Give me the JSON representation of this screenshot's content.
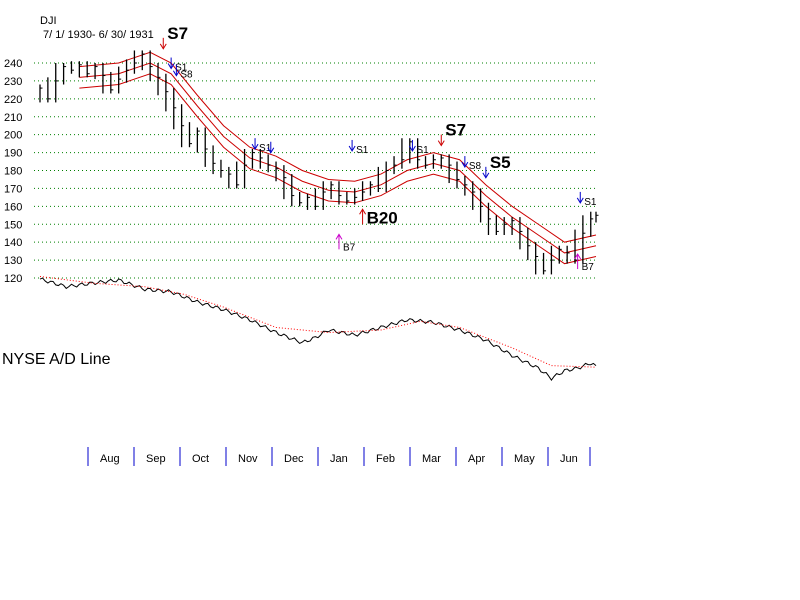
{
  "chart_data": {
    "type": "line",
    "title": "DJI",
    "subtitle": "7/ 1/ 1930- 6/ 30/ 1931",
    "ad_label": "NYSE A/D Line",
    "y_ticks": [
      "240",
      "230",
      "220",
      "210",
      "200",
      "190",
      "180",
      "170",
      "160",
      "150",
      "140",
      "130",
      "120"
    ],
    "ylim": [
      120,
      250
    ],
    "months": [
      "Aug",
      "Sep",
      "Oct",
      "Nov",
      "Dec",
      "Jan",
      "Feb",
      "Mar",
      "Apr",
      "May",
      "Jun"
    ],
    "grid": "dotted horizontal",
    "colors": {
      "price": "#000000",
      "band": "#cc0000",
      "grid": "#008000",
      "ad_line": "#000000",
      "ad_ma": "#ff0000",
      "sell": "#0000cc",
      "sell_major": "#cc0000",
      "buy": "#cc00cc",
      "buy_major": "#cc0000",
      "month_tick": "#0000cc"
    },
    "price": {
      "series_name": "DJI",
      "points": [
        [
          0,
          226
        ],
        [
          3,
          220
        ],
        [
          6,
          230
        ],
        [
          9,
          238
        ],
        [
          12,
          236
        ],
        [
          15,
          239
        ],
        [
          18,
          234
        ],
        [
          21,
          238
        ],
        [
          24,
          233
        ],
        [
          27,
          225
        ],
        [
          30,
          231
        ],
        [
          33,
          236
        ],
        [
          36,
          240
        ],
        [
          39,
          245
        ],
        [
          42,
          238
        ],
        [
          45,
          232
        ],
        [
          48,
          224
        ],
        [
          51,
          215
        ],
        [
          54,
          205
        ],
        [
          57,
          195
        ],
        [
          60,
          202
        ],
        [
          63,
          192
        ],
        [
          66,
          184
        ],
        [
          69,
          180
        ],
        [
          72,
          178
        ],
        [
          75,
          172
        ],
        [
          78,
          183
        ],
        [
          81,
          190
        ],
        [
          84,
          187
        ],
        [
          87,
          183
        ],
        [
          90,
          181
        ],
        [
          93,
          176
        ],
        [
          96,
          166
        ],
        [
          99,
          162
        ],
        [
          102,
          165
        ],
        [
          105,
          160
        ],
        [
          108,
          168
        ],
        [
          111,
          172
        ],
        [
          114,
          166
        ],
        [
          117,
          163
        ],
        [
          120,
          165
        ],
        [
          123,
          168
        ],
        [
          126,
          172
        ],
        [
          129,
          170
        ],
        [
          132,
          180
        ],
        [
          135,
          183
        ],
        [
          138,
          186
        ],
        [
          141,
          196
        ],
        [
          144,
          186
        ],
        [
          147,
          183
        ],
        [
          150,
          186
        ],
        [
          153,
          187
        ],
        [
          156,
          183
        ],
        [
          159,
          175
        ],
        [
          162,
          172
        ],
        [
          165,
          168
        ],
        [
          168,
          160
        ],
        [
          171,
          153
        ],
        [
          174,
          146
        ],
        [
          177,
          150
        ],
        [
          180,
          152
        ],
        [
          183,
          146
        ],
        [
          186,
          138
        ],
        [
          189,
          132
        ],
        [
          192,
          124
        ],
        [
          195,
          130
        ],
        [
          198,
          136
        ],
        [
          201,
          134
        ],
        [
          204,
          130
        ],
        [
          207,
          145
        ],
        [
          210,
          153
        ],
        [
          212,
          155
        ]
      ]
    },
    "bands": {
      "upper": [
        [
          15,
          238
        ],
        [
          30,
          240
        ],
        [
          42,
          246
        ],
        [
          50,
          240
        ],
        [
          60,
          222
        ],
        [
          70,
          205
        ],
        [
          80,
          193
        ],
        [
          90,
          188
        ],
        [
          100,
          180
        ],
        [
          110,
          175
        ],
        [
          120,
          174
        ],
        [
          130,
          178
        ],
        [
          140,
          186
        ],
        [
          150,
          190
        ],
        [
          160,
          186
        ],
        [
          170,
          172
        ],
        [
          180,
          160
        ],
        [
          190,
          150
        ],
        [
          200,
          140
        ],
        [
          212,
          144
        ]
      ],
      "middle": [
        [
          15,
          232
        ],
        [
          30,
          234
        ],
        [
          42,
          240
        ],
        [
          50,
          234
        ],
        [
          60,
          216
        ],
        [
          70,
          199
        ],
        [
          80,
          187
        ],
        [
          90,
          182
        ],
        [
          100,
          174
        ],
        [
          110,
          169
        ],
        [
          120,
          168
        ],
        [
          130,
          172
        ],
        [
          140,
          180
        ],
        [
          150,
          184
        ],
        [
          160,
          180
        ],
        [
          170,
          166
        ],
        [
          180,
          154
        ],
        [
          190,
          144
        ],
        [
          200,
          134
        ],
        [
          212,
          138
        ]
      ],
      "lower": [
        [
          15,
          226
        ],
        [
          30,
          228
        ],
        [
          42,
          234
        ],
        [
          50,
          228
        ],
        [
          60,
          210
        ],
        [
          70,
          193
        ],
        [
          80,
          181
        ],
        [
          90,
          176
        ],
        [
          100,
          168
        ],
        [
          110,
          163
        ],
        [
          120,
          162
        ],
        [
          130,
          166
        ],
        [
          140,
          174
        ],
        [
          150,
          178
        ],
        [
          160,
          174
        ],
        [
          170,
          160
        ],
        [
          180,
          148
        ],
        [
          190,
          138
        ],
        [
          200,
          128
        ],
        [
          212,
          132
        ]
      ]
    },
    "ad_line": [
      [
        0,
        0.0
      ],
      [
        10,
        -1.5
      ],
      [
        20,
        -0.8
      ],
      [
        30,
        -0.2
      ],
      [
        40,
        -2.0
      ],
      [
        50,
        -2.5
      ],
      [
        55,
        -3.5
      ],
      [
        60,
        -4.5
      ],
      [
        70,
        -6.0
      ],
      [
        80,
        -8.0
      ],
      [
        90,
        -10.5
      ],
      [
        100,
        -12.5
      ],
      [
        105,
        -11.5
      ],
      [
        110,
        -10.0
      ],
      [
        120,
        -11.0
      ],
      [
        130,
        -9.5
      ],
      [
        140,
        -8.0
      ],
      [
        150,
        -8.5
      ],
      [
        160,
        -10.0
      ],
      [
        170,
        -12.0
      ],
      [
        180,
        -15.0
      ],
      [
        190,
        -17.5
      ],
      [
        195,
        -19.5
      ],
      [
        200,
        -18.0
      ],
      [
        205,
        -17.5
      ],
      [
        210,
        -16.5
      ],
      [
        212,
        -17.0
      ]
    ],
    "ad_ma": [
      [
        0,
        0.5
      ],
      [
        20,
        -0.8
      ],
      [
        40,
        -1.5
      ],
      [
        55,
        -3.0
      ],
      [
        70,
        -5.5
      ],
      [
        90,
        -9.5
      ],
      [
        110,
        -10.5
      ],
      [
        130,
        -10.0
      ],
      [
        145,
        -8.3
      ],
      [
        160,
        -9.5
      ],
      [
        180,
        -13.5
      ],
      [
        195,
        -17.0
      ],
      [
        212,
        -17.3
      ]
    ],
    "ad_range": [
      -21,
      1
    ],
    "signals": [
      {
        "label": "S7",
        "x": 47,
        "y": 244,
        "kind": "sell_major",
        "size": "big"
      },
      {
        "label": "S1",
        "x": 50,
        "y": 233,
        "kind": "sell",
        "size": "small"
      },
      {
        "label": "S8",
        "x": 52,
        "y": 229,
        "kind": "sell",
        "size": "small"
      },
      {
        "label": "S1",
        "x": 82,
        "y": 188,
        "kind": "sell",
        "size": "small"
      },
      {
        "label": "",
        "x": 88,
        "y": 186,
        "kind": "sell",
        "size": "small"
      },
      {
        "label": "S1",
        "x": 119,
        "y": 187,
        "kind": "sell",
        "size": "small"
      },
      {
        "label": "S1",
        "x": 142,
        "y": 187,
        "kind": "sell",
        "size": "small"
      },
      {
        "label": "S7",
        "x": 153,
        "y": 190,
        "kind": "sell_major",
        "size": "big"
      },
      {
        "label": "S8",
        "x": 162,
        "y": 178,
        "kind": "sell",
        "size": "small"
      },
      {
        "label": "S5",
        "x": 170,
        "y": 172,
        "kind": "sell",
        "size": "big"
      },
      {
        "label": "S1",
        "x": 206,
        "y": 158,
        "kind": "sell",
        "size": "small"
      },
      {
        "label": "B7",
        "x": 114,
        "y": 136,
        "kind": "buy",
        "size": "small"
      },
      {
        "label": "B20",
        "x": 123,
        "y": 150,
        "kind": "buy_major",
        "size": "big"
      },
      {
        "label": "B7",
        "x": 205,
        "y": 125,
        "kind": "buy",
        "size": "small"
      }
    ]
  }
}
